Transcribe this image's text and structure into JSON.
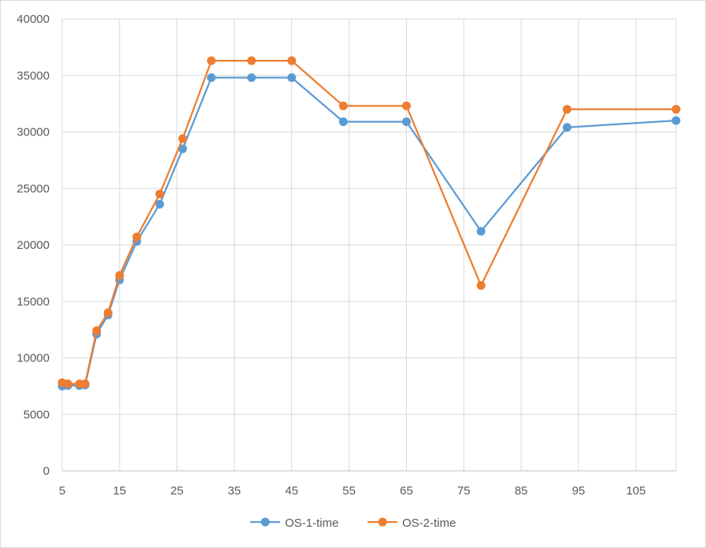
{
  "chart_data": {
    "type": "line",
    "title": "",
    "xlabel": "",
    "ylabel": "",
    "xlim": [
      5,
      112
    ],
    "ylim": [
      0,
      40000
    ],
    "x_ticks": [
      5,
      15,
      25,
      35,
      45,
      55,
      65,
      75,
      85,
      95,
      105
    ],
    "y_ticks": [
      0,
      5000,
      10000,
      15000,
      20000,
      25000,
      30000,
      35000,
      40000
    ],
    "grid": true,
    "legend_position": "bottom",
    "series": [
      {
        "name": "OS-1-time",
        "color": "#5b9bd5",
        "points": [
          [
            5,
            7500
          ],
          [
            6,
            7550
          ],
          [
            8,
            7550
          ],
          [
            9,
            7600
          ],
          [
            11,
            12100
          ],
          [
            13,
            13800
          ],
          [
            15,
            16900
          ],
          [
            18,
            20300
          ],
          [
            22,
            23600
          ],
          [
            26,
            28500
          ],
          [
            31,
            34800
          ],
          [
            38,
            34800
          ],
          [
            45,
            34800
          ],
          [
            54,
            30900
          ],
          [
            65,
            30900
          ],
          [
            78,
            21200
          ],
          [
            93,
            30400
          ],
          [
            112,
            31000
          ]
        ]
      },
      {
        "name": "OS-2-time",
        "color": "#ed7d31",
        "points": [
          [
            5,
            7800
          ],
          [
            6,
            7700
          ],
          [
            8,
            7700
          ],
          [
            9,
            7700
          ],
          [
            11,
            12400
          ],
          [
            13,
            14000
          ],
          [
            15,
            17300
          ],
          [
            18,
            20700
          ],
          [
            22,
            24500
          ],
          [
            26,
            29400
          ],
          [
            31,
            36300
          ],
          [
            38,
            36300
          ],
          [
            45,
            36300
          ],
          [
            54,
            32300
          ],
          [
            65,
            32300
          ],
          [
            78,
            16400
          ],
          [
            93,
            32000
          ],
          [
            112,
            32000
          ]
        ]
      }
    ]
  }
}
